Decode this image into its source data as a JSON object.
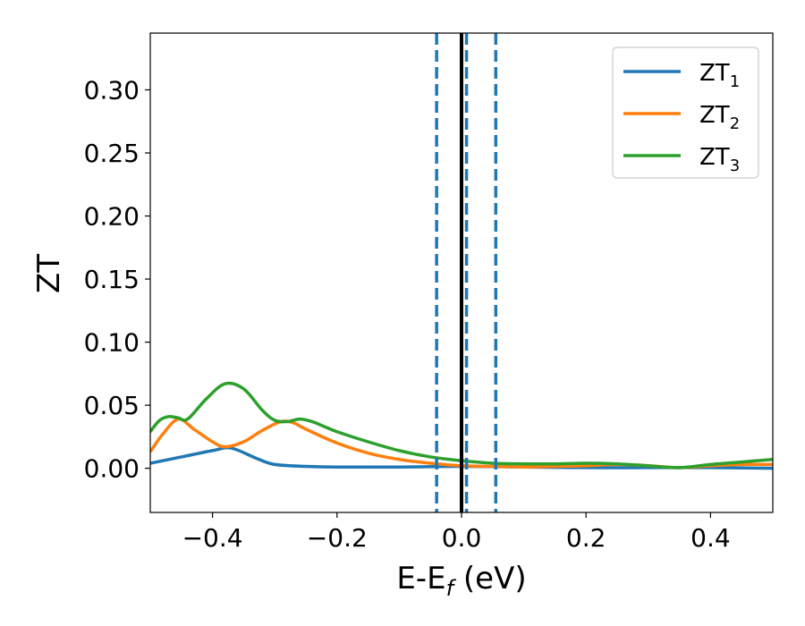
{
  "chart_data": {
    "type": "line",
    "xlabel": "E-E",
    "xlabel_sub": "f",
    "xlabel_unit": "(eV)",
    "ylabel": "ZT",
    "xlim": [
      -0.5,
      0.5
    ],
    "ylim": [
      -0.035,
      0.345
    ],
    "xticks": [
      -0.4,
      -0.2,
      0.0,
      0.2,
      0.4
    ],
    "xtick_labels": [
      "−0.4",
      "−0.2",
      "0.0",
      "0.2",
      "0.4"
    ],
    "yticks": [
      0.0,
      0.05,
      0.1,
      0.15,
      0.2,
      0.25,
      0.3
    ],
    "ytick_labels": [
      "0.00",
      "0.05",
      "0.10",
      "0.15",
      "0.20",
      "0.25",
      "0.30"
    ],
    "grid": false,
    "legend_position": "top-right",
    "vertical_lines": [
      {
        "x": 0.0,
        "style": "solid",
        "color": "#000000"
      },
      {
        "x": -0.04,
        "style": "dashed",
        "color": "#1f77b4"
      },
      {
        "x": 0.008,
        "style": "dashed",
        "color": "#1f77b4"
      },
      {
        "x": 0.055,
        "style": "dashed",
        "color": "#1f77b4"
      }
    ],
    "series": [
      {
        "name": "ZT",
        "sub": "1",
        "color": "#1f77b4",
        "x": [
          -0.5,
          -0.45,
          -0.4,
          -0.37,
          -0.33,
          -0.3,
          -0.25,
          -0.2,
          -0.1,
          0.0,
          0.1,
          0.2,
          0.3,
          0.4,
          0.5
        ],
        "y": [
          0.004,
          0.009,
          0.014,
          0.016,
          0.008,
          0.003,
          0.0015,
          0.001,
          0.001,
          0.0015,
          0.001,
          0.0005,
          0.0005,
          0.0005,
          0.0
        ]
      },
      {
        "name": "ZT",
        "sub": "2",
        "color": "#ff7f0e",
        "x": [
          -0.5,
          -0.48,
          -0.455,
          -0.43,
          -0.4,
          -0.38,
          -0.35,
          -0.32,
          -0.29,
          -0.27,
          -0.25,
          -0.2,
          -0.15,
          -0.1,
          -0.05,
          0.0,
          0.05,
          0.1,
          0.15,
          0.2,
          0.25,
          0.3,
          0.35,
          0.4,
          0.45,
          0.5
        ],
        "y": [
          0.013,
          0.027,
          0.039,
          0.031,
          0.021,
          0.017,
          0.021,
          0.03,
          0.037,
          0.036,
          0.031,
          0.02,
          0.012,
          0.007,
          0.004,
          0.002,
          0.0015,
          0.001,
          0.0015,
          0.002,
          0.003,
          0.002,
          0.0005,
          0.002,
          0.003,
          0.003
        ]
      },
      {
        "name": "ZT",
        "sub": "3",
        "color": "#2ca02c",
        "x": [
          -0.5,
          -0.485,
          -0.47,
          -0.455,
          -0.44,
          -0.41,
          -0.38,
          -0.35,
          -0.32,
          -0.3,
          -0.28,
          -0.26,
          -0.24,
          -0.22,
          -0.2,
          -0.15,
          -0.1,
          -0.05,
          0.0,
          0.05,
          0.1,
          0.15,
          0.2,
          0.25,
          0.3,
          0.35,
          0.4,
          0.45,
          0.5
        ],
        "y": [
          0.029,
          0.038,
          0.041,
          0.04,
          0.039,
          0.055,
          0.067,
          0.063,
          0.046,
          0.038,
          0.037,
          0.039,
          0.037,
          0.033,
          0.029,
          0.021,
          0.014,
          0.009,
          0.006,
          0.004,
          0.0035,
          0.0035,
          0.004,
          0.0035,
          0.002,
          0.0005,
          0.003,
          0.005,
          0.007
        ]
      }
    ]
  }
}
